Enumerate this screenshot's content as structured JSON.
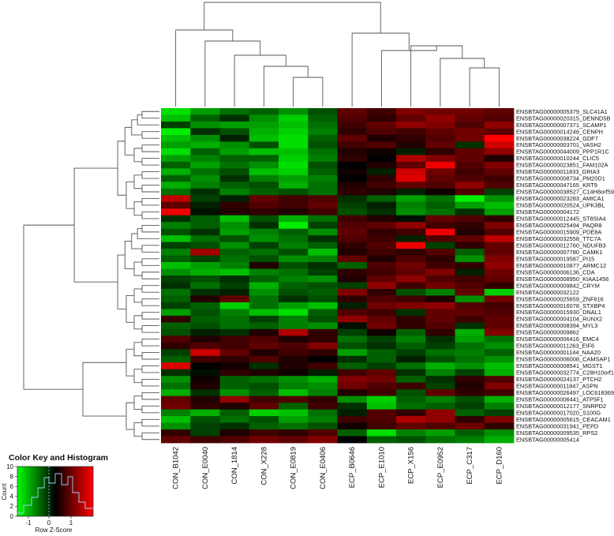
{
  "chart_data": {
    "type": "heatmap",
    "columns": [
      "CON_B1042",
      "CON_E0040",
      "CON_1814",
      "CON_X228",
      "CON_E0819",
      "CON_E0406",
      "ECP_B0646",
      "ECP_E1010",
      "ECP_X156",
      "ECP_E0952",
      "ECP_C317",
      "ECP_D160"
    ],
    "rows": [
      "ENSBTAG00000005379_SLC41A1",
      "ENSBTAG00000020315_DENND5B",
      "ENSBTAG00000007371_SCAMP1",
      "ENSBTAG00000014246_CENPH",
      "ENSBTAG00000038224_GDF7",
      "ENSBTAG00000003701_VASH2",
      "ENSBTAG00000044009_PPP1R1C",
      "ENSBTAG00000010244_CLIC5",
      "ENSBTAG00000023851_FAM102A",
      "ENSBTAG00000011833_GRIA3",
      "ENSBTAG00000008734_PM20D1",
      "ENSBTAG00000047165_KRT9",
      "ENSBTAG00000038527_C14H8orf59",
      "ENSBTAG00000023283_AMICA1",
      "ENSBTAG00000020524_UPK3BL",
      "ENSBTAG00000004172",
      "ENSBTAG00000012445_ST8SIA4",
      "ENSBTAG00000025494_PAQR8",
      "ENSBTAG00000015909_PDE8A",
      "ENSBTAG00000032558_TTC7A",
      "ENSBTAG00000012760_NDUFB3",
      "ENSBTAG00000007780_CAMK1",
      "ENSBTAG00000019587_PI15",
      "ENSBTAG00000010877_ARMC12",
      "ENSBTAG00000006136_CDA",
      "ENSBTAG00000008950_KIAA1456",
      "ENSBTAG00000009842_CRYM",
      "ENSBTAG00000032122",
      "ENSBTAG00000025659_ZNF616",
      "ENSBTAG00000016078_STXBP4",
      "ENSBTAG00000015930_DNAL1",
      "ENSBTAG00000004104_RUNX2",
      "ENSBTAG00000008394_MYL3",
      "ENSBTAG00000009862",
      "ENSBTAG00000006416_EMC4",
      "ENSBTAG00000011263_EIF6",
      "ENSBTAG00000001144_NAA20",
      "ENSBTAG00000006008_CAMSAP1",
      "ENSBTAG00000008541_MGST1",
      "ENSBTAG00000032774_C28H10orf116",
      "ENSBTAG00000024137_PTCH2",
      "ENSBTAG00000011847_ASPN",
      "ENSBTAG00000026497_LOC618369",
      "ENSBTAG00000006441_ATP5F1",
      "ENSBTAG00000012177_SNRPD2",
      "ENSBTAG00000017020_S100G",
      "ENSBTAG00000005615_CEACAM1",
      "ENSBTAG00000031941_PEPD",
      "ENSBTAG00000009535_RPS2",
      "ENSBTAG00000005414"
    ],
    "values": [
      [
        -1.4,
        -1.0,
        -0.7,
        -0.6,
        -0.9,
        -0.5,
        0.6,
        0.4,
        0.8,
        0.7,
        0.7,
        0.6
      ],
      [
        -1.2,
        -0.6,
        -0.3,
        -0.9,
        -1.3,
        -0.6,
        0.5,
        0.3,
        0.6,
        0.9,
        0.6,
        0.5
      ],
      [
        -0.4,
        -0.9,
        -1.0,
        -1.0,
        -1.2,
        -0.7,
        0.4,
        0.6,
        0.9,
        0.8,
        0.5,
        0.9
      ],
      [
        -1.5,
        -0.3,
        -0.5,
        -1.1,
        -1.3,
        -0.8,
        0.3,
        0.5,
        0.4,
        0.6,
        0.7,
        0.6
      ],
      [
        -1.2,
        -0.9,
        -0.2,
        -1.2,
        -1.4,
        -0.6,
        0.6,
        0.2,
        0.3,
        0.5,
        0.7,
        1.6
      ],
      [
        -1.0,
        -1.1,
        -0.9,
        -0.5,
        -1.4,
        -0.5,
        0.4,
        0.5,
        0.2,
        0.6,
        -0.3,
        1.3
      ],
      [
        -1.4,
        -0.6,
        -1.0,
        -1.2,
        -1.2,
        -0.7,
        0.2,
        0.1,
        -0.2,
        0.3,
        0.6,
        0.9
      ],
      [
        -1.0,
        -0.8,
        -0.6,
        -0.6,
        -1.3,
        -0.8,
        0.3,
        0.0,
        1.1,
        0.8,
        0.6,
        0.2
      ],
      [
        -0.6,
        -1.0,
        -0.7,
        -0.9,
        -1.4,
        -0.5,
        0.0,
        0.2,
        0.6,
        1.5,
        0.5,
        0.8
      ],
      [
        -1.1,
        -0.7,
        -0.5,
        -1.2,
        -1.3,
        -0.6,
        0.1,
        -0.2,
        1.3,
        0.7,
        0.4,
        0.6
      ],
      [
        -0.6,
        -0.9,
        -0.3,
        -0.8,
        -1.0,
        -0.8,
        0.0,
        0.3,
        1.4,
        0.6,
        0.5,
        0.4
      ],
      [
        -1.1,
        -0.8,
        -0.6,
        -0.5,
        -1.1,
        -0.7,
        0.2,
        0.4,
        0.6,
        0.5,
        0.9,
        0.5
      ],
      [
        -0.7,
        -0.3,
        -0.8,
        -0.6,
        -0.5,
        -0.7,
        0.3,
        0.2,
        -0.2,
        0.1,
        0.5,
        -0.4
      ],
      [
        1.2,
        -0.4,
        -0.2,
        0.6,
        0.4,
        0.5,
        -0.3,
        -0.6,
        -1.0,
        -0.7,
        -1.5,
        -0.9
      ],
      [
        0.6,
        -0.2,
        0.3,
        0.5,
        0.4,
        0.6,
        -0.4,
        -0.2,
        -0.8,
        -0.6,
        -1.0,
        -1.2
      ],
      [
        1.5,
        -0.1,
        0.2,
        0.3,
        0.2,
        0.4,
        -0.5,
        -0.3,
        -0.9,
        -0.7,
        -0.3,
        -1.0
      ],
      [
        -0.3,
        -0.6,
        -1.2,
        -0.5,
        -1.1,
        -0.7,
        0.4,
        0.2,
        -0.1,
        0.6,
        0.5,
        0.3
      ],
      [
        -0.8,
        -0.6,
        -0.9,
        -0.3,
        -1.5,
        -0.4,
        0.5,
        0.6,
        0.9,
        0.4,
        0.3,
        0.8
      ],
      [
        -0.5,
        -0.3,
        -1.0,
        -0.8,
        -0.6,
        -0.9,
        0.6,
        0.3,
        0.4,
        1.5,
        0.2,
        0.5
      ],
      [
        -1.2,
        -0.7,
        -0.5,
        -0.9,
        -0.7,
        -0.3,
        0.5,
        0.4,
        -0.2,
        0.5,
        0.6,
        1.2
      ],
      [
        -0.4,
        -0.5,
        -0.9,
        -0.4,
        -0.8,
        -0.6,
        0.3,
        0.5,
        1.5,
        -0.4,
        0.3,
        0.6
      ],
      [
        -0.8,
        1.0,
        -0.6,
        -0.7,
        -0.5,
        -1.2,
        0.2,
        0.4,
        0.3,
        0.5,
        -0.6,
        0.6
      ],
      [
        -0.6,
        -0.4,
        -0.7,
        -0.5,
        -0.9,
        -0.8,
        0.6,
        0.2,
        0.5,
        0.3,
        -0.9,
        0.8
      ],
      [
        -1.2,
        -1.0,
        -0.8,
        0.2,
        -0.5,
        -0.3,
        -0.6,
        0.5,
        0.7,
        0.4,
        0.3,
        0.9
      ],
      [
        -0.9,
        -1.1,
        -1.2,
        -0.8,
        -0.7,
        -0.4,
        0.3,
        0.4,
        0.6,
        0.8,
        -0.2,
        0.7
      ],
      [
        -0.4,
        -0.5,
        -0.3,
        -0.6,
        -0.8,
        -0.9,
        0.2,
        0.6,
        0.9,
        0.5,
        0.4,
        0.6
      ],
      [
        -0.3,
        -0.7,
        -0.4,
        -1.1,
        -0.6,
        -0.5,
        -0.4,
        0.9,
        0.4,
        0.7,
        0.5,
        0.3
      ],
      [
        -0.7,
        -0.3,
        -0.2,
        -0.9,
        -0.5,
        -0.6,
        0.8,
        0.3,
        -0.5,
        -0.8,
        0.6,
        -1.3
      ],
      [
        -0.6,
        0.2,
        0.6,
        -0.7,
        -0.3,
        -0.5,
        0.3,
        0.5,
        0.4,
        0.2,
        -0.9,
        0.7
      ],
      [
        -0.4,
        -0.6,
        -1.3,
        -0.7,
        -1.0,
        -1.2,
        -0.2,
        0.7,
        0.8,
        0.9,
        0.5,
        0.4
      ],
      [
        -1.0,
        -0.5,
        -0.8,
        -1.2,
        -1.4,
        -0.6,
        0.5,
        0.4,
        -0.3,
        0.6,
        0.6,
        0.5
      ],
      [
        0.3,
        -0.6,
        -0.7,
        -0.4,
        -0.8,
        -0.5,
        0.9,
        0.6,
        0.3,
        0.6,
        0.4,
        0.6
      ],
      [
        -0.6,
        -0.5,
        -0.7,
        -0.6,
        -0.8,
        -0.9,
        -0.1,
        0.7,
        0.3,
        0.5,
        -0.3,
        0.6
      ],
      [
        -0.5,
        -0.2,
        -0.3,
        0.2,
        1.1,
        0.3,
        -0.4,
        0.1,
        -0.6,
        0.3,
        -1.1,
        0.8
      ],
      [
        0.5,
        0.2,
        0.4,
        0.5,
        0.2,
        0.3,
        -0.7,
        -0.4,
        -0.8,
        -0.3,
        -1.0,
        -0.7
      ],
      [
        0.3,
        0.5,
        0.4,
        0.6,
        0.5,
        0.8,
        -0.5,
        -0.3,
        -0.6,
        -0.4,
        -0.7,
        -0.9
      ],
      [
        -0.4,
        1.3,
        0.6,
        0.2,
        0.4,
        0.3,
        -1.0,
        -0.6,
        -0.4,
        -0.7,
        -0.8,
        -0.6
      ],
      [
        -0.6,
        0.4,
        0.3,
        0.5,
        0.2,
        0.0,
        -0.3,
        -0.6,
        -0.2,
        -0.5,
        -0.7,
        -0.9
      ],
      [
        1.4,
        0.0,
        0.1,
        -0.3,
        0.2,
        0.4,
        -0.6,
        -0.4,
        -0.7,
        -1.1,
        -0.9,
        -1.2
      ],
      [
        -0.3,
        -0.1,
        0.3,
        0.2,
        0.1,
        -0.2,
        0.4,
        0.6,
        -0.3,
        -0.8,
        -0.4,
        -1.1
      ],
      [
        -0.9,
        0.1,
        -0.6,
        -0.7,
        -0.9,
        -1.1,
        0.8,
        0.7,
        -0.6,
        -0.3,
        0.3,
        0.5
      ],
      [
        -0.7,
        0.2,
        -0.6,
        -0.5,
        -0.8,
        -0.9,
        0.7,
        0.5,
        0.4,
        -0.4,
        0.2,
        0.8
      ],
      [
        -1.1,
        -0.3,
        -0.9,
        -0.6,
        -1.2,
        -0.8,
        0.2,
        0.4,
        -0.5,
        0.6,
        0.3,
        0.4
      ],
      [
        0.6,
        0.2,
        0.9,
        0.4,
        0.5,
        0.3,
        -0.9,
        -1.3,
        -0.6,
        -0.8,
        -0.5,
        -1.1
      ],
      [
        0.7,
        0.3,
        0.2,
        0.6,
        -0.6,
        0.4,
        -0.3,
        -1.2,
        -0.7,
        -0.6,
        -0.4,
        -0.8
      ],
      [
        -0.8,
        -1.1,
        -0.6,
        -1.3,
        -1.2,
        -0.7,
        -0.2,
        0.5,
        0.3,
        0.9,
        -0.6,
        -0.4
      ],
      [
        -1.2,
        -0.5,
        -0.7,
        -0.5,
        -1.0,
        -0.8,
        0.4,
        0.5,
        1.1,
        0.9,
        0.3,
        0.8
      ],
      [
        -0.9,
        -0.4,
        -0.3,
        -0.6,
        -0.7,
        -0.5,
        0.1,
        0.4,
        0.6,
        0.5,
        0.7,
        0.3
      ],
      [
        0.3,
        -0.4,
        0.2,
        0.4,
        0.3,
        0.5,
        -0.6,
        -1.4,
        -0.8,
        -1.0,
        -0.6,
        -0.9
      ],
      [
        0.6,
        0.4,
        0.5,
        0.7,
        0.6,
        0.8,
        0.0,
        -0.6,
        -0.5,
        -0.7,
        -0.8,
        -1.1
      ]
    ],
    "color_key": {
      "title": "Color Key and Histogram",
      "xlabel": "Row Z-Score",
      "ylabel": "Count",
      "xticks": [
        "-1",
        "0",
        "1"
      ],
      "yticks": [
        "0",
        "2",
        "4",
        "6",
        "8",
        "10"
      ],
      "low_color": "#00ff00",
      "mid_color": "#000000",
      "high_color": "#ff0000"
    }
  }
}
